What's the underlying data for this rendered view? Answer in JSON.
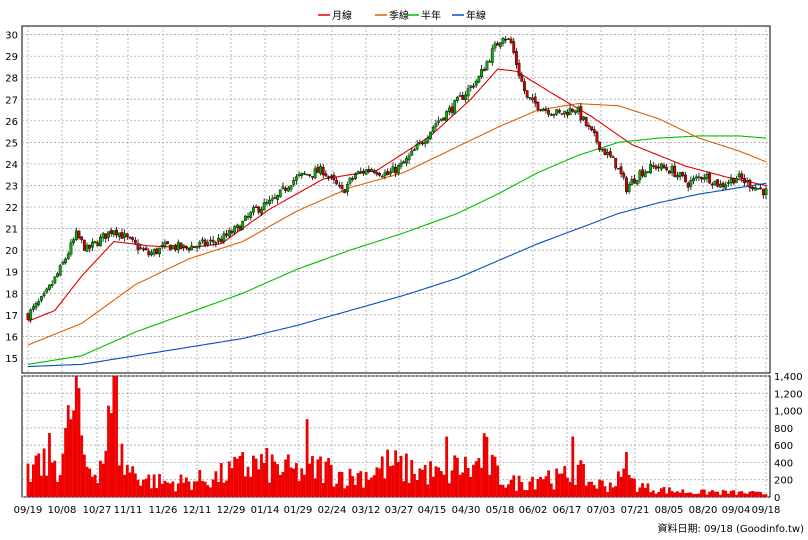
{
  "legend": [
    {
      "label": "月線",
      "color": "#e00000"
    },
    {
      "label": "季線",
      "color": "#e06000"
    },
    {
      "label": "半年",
      "color": "#00c000"
    },
    {
      "label": "年線",
      "color": "#0050c0"
    }
  ],
  "footer": {
    "source": "資料日期: 09/18 (Goodinfo.tw)"
  },
  "colors": {
    "up": "#00b000",
    "down": "#cc0000",
    "volume": "#ee0000",
    "grid": "#9a9a9a"
  },
  "chart_data": [
    {
      "type": "candlestick",
      "title": "",
      "ylim": [
        14.3,
        30.4
      ],
      "yticks": [
        15,
        16,
        17,
        18,
        19,
        20,
        21,
        22,
        23,
        24,
        25,
        26,
        27,
        28,
        29,
        30
      ],
      "ytick_labels": [
        "15",
        "16",
        "17",
        "18",
        "19",
        "20",
        "21",
        "22",
        "23",
        "24",
        "25",
        "26",
        "27",
        "28",
        "29",
        "30"
      ],
      "xticks": [
        "09/19",
        "10/08",
        "10/27",
        "11/11",
        "11/26",
        "12/11",
        "12/29",
        "01/14",
        "01/29",
        "02/24",
        "03/12",
        "03/27",
        "04/15",
        "04/30",
        "05/18",
        "06/02",
        "06/17",
        "07/03",
        "07/21",
        "08/05",
        "08/20",
        "09/04",
        "09/18"
      ],
      "grid": true,
      "price_anchors": [
        [
          0,
          17.0
        ],
        [
          6,
          17.8
        ],
        [
          12,
          19.1
        ],
        [
          18,
          20.7
        ],
        [
          22,
          20.0
        ],
        [
          27,
          20.5
        ],
        [
          32,
          21.0
        ],
        [
          38,
          20.4
        ],
        [
          45,
          19.8
        ],
        [
          52,
          20.2
        ],
        [
          58,
          20.1
        ],
        [
          66,
          20.3
        ],
        [
          72,
          20.5
        ],
        [
          78,
          21.0
        ],
        [
          85,
          21.9
        ],
        [
          92,
          22.3
        ],
        [
          98,
          23.2
        ],
        [
          103,
          23.5
        ],
        [
          110,
          23.7
        ],
        [
          117,
          22.7
        ],
        [
          122,
          23.5
        ],
        [
          128,
          23.8
        ],
        [
          134,
          23.5
        ],
        [
          140,
          24.0
        ],
        [
          146,
          24.9
        ],
        [
          152,
          25.9
        ],
        [
          158,
          26.6
        ],
        [
          163,
          27.3
        ],
        [
          168,
          28.0
        ],
        [
          173,
          29.2
        ],
        [
          177,
          30.0
        ],
        [
          180,
          29.6
        ],
        [
          183,
          28.2
        ],
        [
          186,
          27.0
        ],
        [
          192,
          26.6
        ],
        [
          198,
          26.3
        ],
        [
          204,
          26.6
        ],
        [
          209,
          25.6
        ],
        [
          214,
          24.7
        ],
        [
          219,
          24.0
        ],
        [
          223,
          22.9
        ],
        [
          228,
          23.6
        ],
        [
          234,
          23.9
        ],
        [
          240,
          23.7
        ],
        [
          246,
          23.1
        ],
        [
          252,
          23.5
        ],
        [
          258,
          23.0
        ],
        [
          264,
          23.4
        ],
        [
          270,
          23.0
        ],
        [
          275,
          22.7
        ]
      ],
      "series": [
        {
          "name": "月線",
          "anchors": [
            [
              0,
              16.7
            ],
            [
              10,
              17.2
            ],
            [
              20,
              18.8
            ],
            [
              32,
              20.4
            ],
            [
              45,
              20.2
            ],
            [
              60,
              20.1
            ],
            [
              72,
              20.3
            ],
            [
              90,
              21.9
            ],
            [
              110,
              23.3
            ],
            [
              130,
              23.7
            ],
            [
              150,
              25.3
            ],
            [
              165,
              27.0
            ],
            [
              175,
              28.4
            ],
            [
              182,
              28.3
            ],
            [
              195,
              27.3
            ],
            [
              210,
              26.2
            ],
            [
              225,
              24.9
            ],
            [
              245,
              23.9
            ],
            [
              260,
              23.4
            ],
            [
              275,
              23.0
            ]
          ]
        },
        {
          "name": "季線",
          "anchors": [
            [
              0,
              15.6
            ],
            [
              20,
              16.6
            ],
            [
              40,
              18.4
            ],
            [
              60,
              19.6
            ],
            [
              80,
              20.4
            ],
            [
              100,
              21.8
            ],
            [
              120,
              22.9
            ],
            [
              140,
              23.6
            ],
            [
              160,
              24.8
            ],
            [
              175,
              25.7
            ],
            [
              190,
              26.5
            ],
            [
              205,
              26.8
            ],
            [
              220,
              26.7
            ],
            [
              235,
              26.1
            ],
            [
              250,
              25.2
            ],
            [
              265,
              24.6
            ],
            [
              275,
              24.1
            ]
          ]
        },
        {
          "name": "半年",
          "anchors": [
            [
              0,
              14.7
            ],
            [
              20,
              15.1
            ],
            [
              40,
              16.2
            ],
            [
              60,
              17.1
            ],
            [
              80,
              18.0
            ],
            [
              100,
              19.1
            ],
            [
              120,
              20.0
            ],
            [
              140,
              20.8
            ],
            [
              160,
              21.7
            ],
            [
              175,
              22.6
            ],
            [
              190,
              23.6
            ],
            [
              205,
              24.4
            ],
            [
              220,
              25.0
            ],
            [
              235,
              25.2
            ],
            [
              250,
              25.3
            ],
            [
              265,
              25.3
            ],
            [
              275,
              25.2
            ]
          ]
        },
        {
          "name": "年線",
          "anchors": [
            [
              0,
              14.6
            ],
            [
              20,
              14.7
            ],
            [
              40,
              15.1
            ],
            [
              60,
              15.5
            ],
            [
              80,
              15.9
            ],
            [
              100,
              16.5
            ],
            [
              120,
              17.2
            ],
            [
              140,
              17.9
            ],
            [
              160,
              18.7
            ],
            [
              175,
              19.5
            ],
            [
              190,
              20.3
            ],
            [
              205,
              21.0
            ],
            [
              220,
              21.7
            ],
            [
              235,
              22.2
            ],
            [
              250,
              22.6
            ],
            [
              265,
              22.9
            ],
            [
              275,
              23.1
            ]
          ]
        }
      ]
    },
    {
      "type": "bar",
      "title": "",
      "ylim": [
        0,
        1400
      ],
      "yticks": [
        0,
        200,
        400,
        600,
        800,
        1000,
        1200,
        1400
      ],
      "ytick_labels": [
        "0",
        "200",
        "400",
        "600",
        "800",
        "1,000",
        "1,200",
        "1,400"
      ],
      "volume_anchors": [
        [
          0,
          300
        ],
        [
          4,
          350
        ],
        [
          8,
          520
        ],
        [
          12,
          420
        ],
        [
          16,
          950
        ],
        [
          18,
          1150
        ],
        [
          20,
          500
        ],
        [
          24,
          320
        ],
        [
          28,
          520
        ],
        [
          32,
          1200
        ],
        [
          34,
          600
        ],
        [
          36,
          400
        ],
        [
          40,
          300
        ],
        [
          45,
          220
        ],
        [
          52,
          180
        ],
        [
          60,
          200
        ],
        [
          70,
          250
        ],
        [
          78,
          350
        ],
        [
          85,
          420
        ],
        [
          92,
          380
        ],
        [
          100,
          320
        ],
        [
          110,
          380
        ],
        [
          120,
          250
        ],
        [
          128,
          320
        ],
        [
          135,
          420
        ],
        [
          140,
          360
        ],
        [
          148,
          330
        ],
        [
          155,
          260
        ],
        [
          160,
          400
        ],
        [
          166,
          350
        ],
        [
          170,
          550
        ],
        [
          175,
          280
        ],
        [
          180,
          180
        ],
        [
          186,
          200
        ],
        [
          192,
          300
        ],
        [
          198,
          220
        ],
        [
          204,
          350
        ],
        [
          210,
          180
        ],
        [
          216,
          150
        ],
        [
          222,
          250
        ],
        [
          230,
          120
        ],
        [
          240,
          80
        ],
        [
          250,
          60
        ],
        [
          260,
          60
        ],
        [
          270,
          50
        ],
        [
          275,
          40
        ]
      ],
      "volume_spikes": [
        [
          3,
          480
        ],
        [
          16,
          900
        ],
        [
          19,
          1260
        ],
        [
          33,
          1420
        ],
        [
          80,
          520
        ],
        [
          104,
          900
        ],
        [
          156,
          700
        ],
        [
          203,
          700
        ],
        [
          223,
          520
        ],
        [
          255,
          80
        ]
      ]
    }
  ]
}
